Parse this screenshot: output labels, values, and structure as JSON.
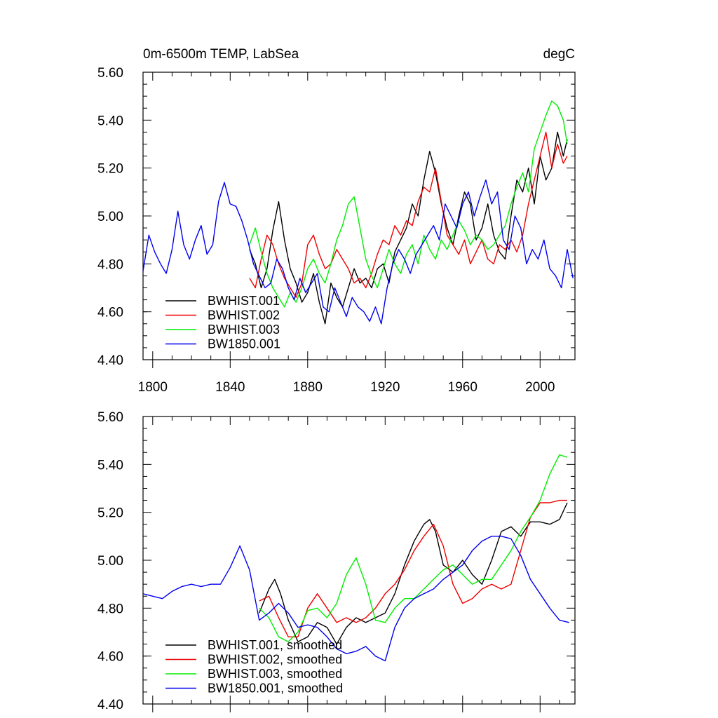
{
  "chart_data": [
    {
      "type": "line",
      "title": "0m-6500m TEMP, LabSea",
      "units_label": "degC",
      "xlabel": "",
      "ylabel": "",
      "xlim": [
        1795,
        2018
      ],
      "ylim": [
        4.4,
        5.6
      ],
      "xticks": [
        1800,
        1840,
        1880,
        1920,
        1960,
        2000
      ],
      "xtick_labels": [
        "1800",
        "1840",
        "1880",
        "1920",
        "1960",
        "2000"
      ],
      "yticks": [
        4.4,
        4.6,
        4.8,
        5.0,
        5.2,
        5.4,
        5.6
      ],
      "ytick_labels": [
        "4.40",
        "4.60",
        "4.80",
        "5.00",
        "5.20",
        "5.40",
        "5.60"
      ],
      "grid": false,
      "legend_position": "bottom-left",
      "series": [
        {
          "name": "BWHIST.001",
          "color": "#000000",
          "x": [
            1850,
            1853,
            1856,
            1859,
            1862,
            1865,
            1868,
            1871,
            1874,
            1877,
            1880,
            1883,
            1886,
            1889,
            1892,
            1895,
            1898,
            1901,
            1904,
            1907,
            1910,
            1913,
            1916,
            1919,
            1922,
            1925,
            1928,
            1931,
            1934,
            1937,
            1940,
            1943,
            1946,
            1949,
            1952,
            1955,
            1958,
            1961,
            1964,
            1967,
            1970,
            1973,
            1976,
            1979,
            1982,
            1985,
            1988,
            1991,
            1994,
            1997,
            2000,
            2003,
            2006,
            2009,
            2012,
            2014
          ],
          "values": [
            4.86,
            4.8,
            4.7,
            4.78,
            4.94,
            5.06,
            4.9,
            4.78,
            4.72,
            4.64,
            4.68,
            4.76,
            4.64,
            4.55,
            4.72,
            4.66,
            4.62,
            4.7,
            4.78,
            4.72,
            4.74,
            4.7,
            4.78,
            4.8,
            4.72,
            4.85,
            4.9,
            4.95,
            5.05,
            5.0,
            5.15,
            5.27,
            5.18,
            5.05,
            4.95,
            4.88,
            5.0,
            5.1,
            5.05,
            4.9,
            4.95,
            5.05,
            4.92,
            4.85,
            4.82,
            5.0,
            5.15,
            5.1,
            5.2,
            5.05,
            5.25,
            5.15,
            5.2,
            5.35,
            5.25,
            5.32
          ]
        },
        {
          "name": "BWHIST.002",
          "color": "#ee0000",
          "x": [
            1850,
            1853,
            1856,
            1859,
            1862,
            1865,
            1868,
            1871,
            1874,
            1877,
            1880,
            1883,
            1886,
            1889,
            1892,
            1895,
            1898,
            1901,
            1904,
            1907,
            1910,
            1913,
            1916,
            1919,
            1922,
            1925,
            1928,
            1931,
            1934,
            1937,
            1940,
            1943,
            1946,
            1949,
            1952,
            1955,
            1958,
            1961,
            1964,
            1967,
            1970,
            1973,
            1976,
            1979,
            1982,
            1985,
            1988,
            1991,
            1994,
            1997,
            2000,
            2003,
            2006,
            2009,
            2012,
            2014
          ],
          "values": [
            4.74,
            4.7,
            4.82,
            4.92,
            4.88,
            4.8,
            4.74,
            4.7,
            4.66,
            4.72,
            4.88,
            4.92,
            4.84,
            4.78,
            4.8,
            4.86,
            4.82,
            4.78,
            4.72,
            4.74,
            4.7,
            4.76,
            4.84,
            4.9,
            4.88,
            4.96,
            4.92,
            4.98,
            4.96,
            5.06,
            5.12,
            5.1,
            5.2,
            5.06,
            4.92,
            4.88,
            4.84,
            4.9,
            4.8,
            4.85,
            4.9,
            4.82,
            4.8,
            4.88,
            4.86,
            4.9,
            4.85,
            4.92,
            5.05,
            5.15,
            5.25,
            5.35,
            5.2,
            5.3,
            5.22,
            5.25
          ]
        },
        {
          "name": "BWHIST.003",
          "color": "#00ee00",
          "x": [
            1850,
            1853,
            1856,
            1859,
            1862,
            1865,
            1868,
            1871,
            1874,
            1877,
            1880,
            1883,
            1886,
            1889,
            1892,
            1895,
            1898,
            1901,
            1904,
            1907,
            1910,
            1913,
            1916,
            1919,
            1922,
            1925,
            1928,
            1931,
            1934,
            1937,
            1940,
            1943,
            1946,
            1949,
            1952,
            1955,
            1958,
            1961,
            1964,
            1967,
            1970,
            1973,
            1976,
            1979,
            1982,
            1985,
            1988,
            1991,
            1994,
            1997,
            2000,
            2003,
            2006,
            2009,
            2012,
            2014
          ],
          "values": [
            4.88,
            4.95,
            4.85,
            4.76,
            4.7,
            4.66,
            4.62,
            4.68,
            4.64,
            4.7,
            4.78,
            4.82,
            4.76,
            4.72,
            4.8,
            4.9,
            4.96,
            5.05,
            5.08,
            4.95,
            4.82,
            4.75,
            4.7,
            4.78,
            4.86,
            4.8,
            4.76,
            4.84,
            4.88,
            4.8,
            4.92,
            4.86,
            4.82,
            4.9,
            4.86,
            4.92,
            4.98,
            4.94,
            4.88,
            4.92,
            4.9,
            4.86,
            4.88,
            4.92,
            4.96,
            5.05,
            5.12,
            5.18,
            5.1,
            5.28,
            5.35,
            5.42,
            5.48,
            5.46,
            5.4,
            5.3
          ]
        },
        {
          "name": "BW1850.001",
          "color": "#0000ee",
          "x": [
            1795,
            1798,
            1801,
            1804,
            1807,
            1810,
            1813,
            1816,
            1819,
            1822,
            1825,
            1828,
            1831,
            1834,
            1837,
            1840,
            1843,
            1846,
            1849,
            1852,
            1855,
            1858,
            1861,
            1864,
            1867,
            1870,
            1873,
            1876,
            1879,
            1882,
            1885,
            1888,
            1891,
            1894,
            1897,
            1900,
            1903,
            1906,
            1909,
            1912,
            1915,
            1918,
            1921,
            1924,
            1927,
            1930,
            1933,
            1936,
            1939,
            1942,
            1945,
            1948,
            1951,
            1954,
            1957,
            1960,
            1963,
            1966,
            1969,
            1972,
            1975,
            1978,
            1981,
            1984,
            1987,
            1990,
            1993,
            1996,
            1999,
            2002,
            2005,
            2008,
            2011,
            2014,
            2017
          ],
          "values": [
            4.77,
            4.92,
            4.85,
            4.8,
            4.76,
            4.86,
            5.02,
            4.88,
            4.82,
            4.9,
            4.96,
            4.84,
            4.88,
            5.06,
            5.14,
            5.05,
            5.04,
            4.98,
            4.9,
            4.8,
            4.75,
            4.7,
            4.72,
            4.82,
            4.78,
            4.7,
            4.65,
            4.74,
            4.68,
            4.72,
            4.76,
            4.62,
            4.6,
            4.7,
            4.64,
            4.58,
            4.66,
            4.62,
            4.6,
            4.56,
            4.62,
            4.55,
            4.7,
            4.8,
            4.86,
            4.82,
            4.76,
            4.84,
            4.88,
            4.92,
            4.96,
            4.9,
            5.05,
            5.0,
            4.95,
            5.05,
            5.1,
            5.0,
            5.08,
            5.15,
            5.05,
            5.1,
            4.9,
            4.86,
            5.0,
            4.95,
            4.8,
            4.86,
            4.82,
            4.9,
            4.78,
            4.75,
            4.7,
            4.86,
            4.74
          ]
        }
      ]
    },
    {
      "type": "line",
      "title": "",
      "xlabel": "",
      "ylabel": "",
      "xlim": [
        1795,
        2018
      ],
      "ylim": [
        4.4,
        5.6
      ],
      "xticks": [
        1800,
        1840,
        1880,
        1920,
        1960,
        2000
      ],
      "yticks": [
        4.4,
        4.6,
        4.8,
        5.0,
        5.2,
        5.4,
        5.6
      ],
      "ytick_labels": [
        "4.40",
        "4.60",
        "4.80",
        "5.00",
        "5.20",
        "5.40",
        "5.60"
      ],
      "grid": false,
      "legend_position": "bottom-left",
      "series": [
        {
          "name": "BWHIST.001, smoothed",
          "color": "#000000",
          "x": [
            1855,
            1860,
            1863,
            1866,
            1870,
            1875,
            1880,
            1885,
            1890,
            1895,
            1900,
            1905,
            1910,
            1915,
            1920,
            1925,
            1930,
            1935,
            1940,
            1943,
            1946,
            1950,
            1955,
            1960,
            1965,
            1970,
            1975,
            1980,
            1985,
            1990,
            1995,
            2000,
            2005,
            2010,
            2014
          ],
          "values": [
            4.78,
            4.88,
            4.92,
            4.86,
            4.75,
            4.66,
            4.68,
            4.74,
            4.72,
            4.65,
            4.72,
            4.76,
            4.74,
            4.76,
            4.78,
            4.86,
            4.98,
            5.08,
            5.15,
            5.17,
            5.12,
            4.98,
            4.95,
            5.0,
            4.94,
            4.9,
            5.0,
            5.12,
            5.14,
            5.1,
            5.16,
            5.16,
            5.15,
            5.17,
            5.24
          ]
        },
        {
          "name": "BWHIST.002, smoothed",
          "color": "#ee0000",
          "x": [
            1855,
            1860,
            1865,
            1870,
            1875,
            1880,
            1885,
            1890,
            1895,
            1900,
            1905,
            1910,
            1915,
            1920,
            1925,
            1930,
            1935,
            1940,
            1945,
            1950,
            1955,
            1960,
            1965,
            1970,
            1975,
            1980,
            1985,
            1990,
            1995,
            2000,
            2005,
            2010,
            2014
          ],
          "values": [
            4.83,
            4.85,
            4.76,
            4.68,
            4.68,
            4.8,
            4.86,
            4.8,
            4.74,
            4.76,
            4.74,
            4.76,
            4.8,
            4.86,
            4.9,
            4.96,
            5.04,
            5.1,
            5.15,
            5.06,
            4.9,
            4.82,
            4.84,
            4.88,
            4.9,
            4.88,
            4.9,
            5.04,
            5.18,
            5.24,
            5.24,
            5.25,
            5.25
          ]
        },
        {
          "name": "BWHIST.003, smoothed",
          "color": "#00ee00",
          "x": [
            1855,
            1860,
            1865,
            1870,
            1875,
            1880,
            1885,
            1890,
            1895,
            1900,
            1905,
            1910,
            1915,
            1920,
            1925,
            1930,
            1935,
            1940,
            1945,
            1950,
            1955,
            1960,
            1965,
            1970,
            1975,
            1980,
            1985,
            1990,
            1995,
            2000,
            2005,
            2010,
            2014
          ],
          "values": [
            4.8,
            4.76,
            4.68,
            4.66,
            4.7,
            4.79,
            4.8,
            4.76,
            4.82,
            4.94,
            5.01,
            4.9,
            4.75,
            4.74,
            4.8,
            4.84,
            4.84,
            4.88,
            4.92,
            4.96,
            4.98,
            4.94,
            4.9,
            4.92,
            4.92,
            4.98,
            5.04,
            5.12,
            5.18,
            5.25,
            5.36,
            5.44,
            5.43
          ]
        },
        {
          "name": "BW1850.001, smoothed",
          "color": "#0000ee",
          "x": [
            1795,
            1800,
            1805,
            1810,
            1815,
            1820,
            1825,
            1830,
            1835,
            1840,
            1845,
            1850,
            1855,
            1860,
            1865,
            1870,
            1875,
            1880,
            1885,
            1890,
            1895,
            1900,
            1905,
            1910,
            1915,
            1920,
            1925,
            1930,
            1935,
            1940,
            1945,
            1950,
            1955,
            1960,
            1965,
            1970,
            1975,
            1980,
            1985,
            1990,
            1995,
            2000,
            2005,
            2010,
            2015
          ],
          "values": [
            4.86,
            4.85,
            4.84,
            4.87,
            4.89,
            4.9,
            4.89,
            4.9,
            4.9,
            4.97,
            5.06,
            4.96,
            4.75,
            4.78,
            4.82,
            4.78,
            4.72,
            4.73,
            4.72,
            4.68,
            4.63,
            4.61,
            4.62,
            4.64,
            4.6,
            4.58,
            4.72,
            4.8,
            4.84,
            4.86,
            4.88,
            4.92,
            4.95,
            4.98,
            5.04,
            5.08,
            5.1,
            5.1,
            5.09,
            5.02,
            4.92,
            4.86,
            4.8,
            4.75,
            4.74
          ]
        }
      ]
    }
  ]
}
